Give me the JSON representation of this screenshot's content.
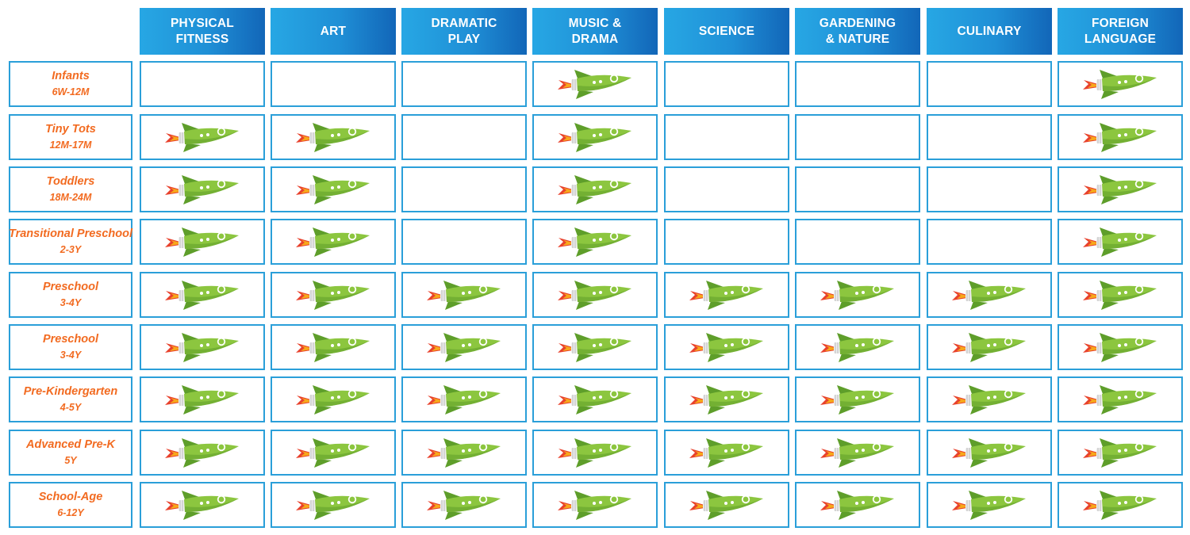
{
  "columns": [
    "PHYSICAL\nFITNESS",
    "ART",
    "DRAMATIC\nPLAY",
    "MUSIC &\nDRAMA",
    "SCIENCE",
    "GARDENING\n& NATURE",
    "CULINARY",
    "FOREIGN\nLANGUAGE"
  ],
  "rows": [
    {
      "name": "Infants",
      "age": "6W-12M",
      "marks": [
        false,
        false,
        false,
        true,
        false,
        false,
        false,
        true
      ]
    },
    {
      "name": "Tiny Tots",
      "age": "12M-17M",
      "marks": [
        true,
        true,
        false,
        true,
        false,
        false,
        false,
        true
      ]
    },
    {
      "name": "Toddlers",
      "age": "18M-24M",
      "marks": [
        true,
        true,
        false,
        true,
        false,
        false,
        false,
        true
      ]
    },
    {
      "name": "Transitional Preschool",
      "age": "2-3Y",
      "marks": [
        true,
        true,
        false,
        true,
        false,
        false,
        false,
        true
      ]
    },
    {
      "name": "Preschool",
      "age": "3-4Y",
      "marks": [
        true,
        true,
        true,
        true,
        true,
        true,
        true,
        true
      ]
    },
    {
      "name": "Preschool",
      "age": "3-4Y",
      "marks": [
        true,
        true,
        true,
        true,
        true,
        true,
        true,
        true
      ]
    },
    {
      "name": "Pre-Kindergarten",
      "age": "4-5Y",
      "marks": [
        true,
        true,
        true,
        true,
        true,
        true,
        true,
        true
      ]
    },
    {
      "name": "Advanced Pre-K",
      "age": "5Y",
      "marks": [
        true,
        true,
        true,
        true,
        true,
        true,
        true,
        true
      ]
    },
    {
      "name": "School-Age",
      "age": "6-12Y",
      "marks": [
        true,
        true,
        true,
        true,
        true,
        true,
        true,
        true
      ]
    }
  ],
  "icon": "rocket-icon",
  "colors": {
    "header_start": "#27a7e4",
    "header_end": "#1266b8",
    "border": "#2a9fd9",
    "label_text": "#f26b21",
    "rocket_body": "#8cc63f",
    "rocket_shade": "#5e9e2a",
    "flame": "#e8412c"
  }
}
